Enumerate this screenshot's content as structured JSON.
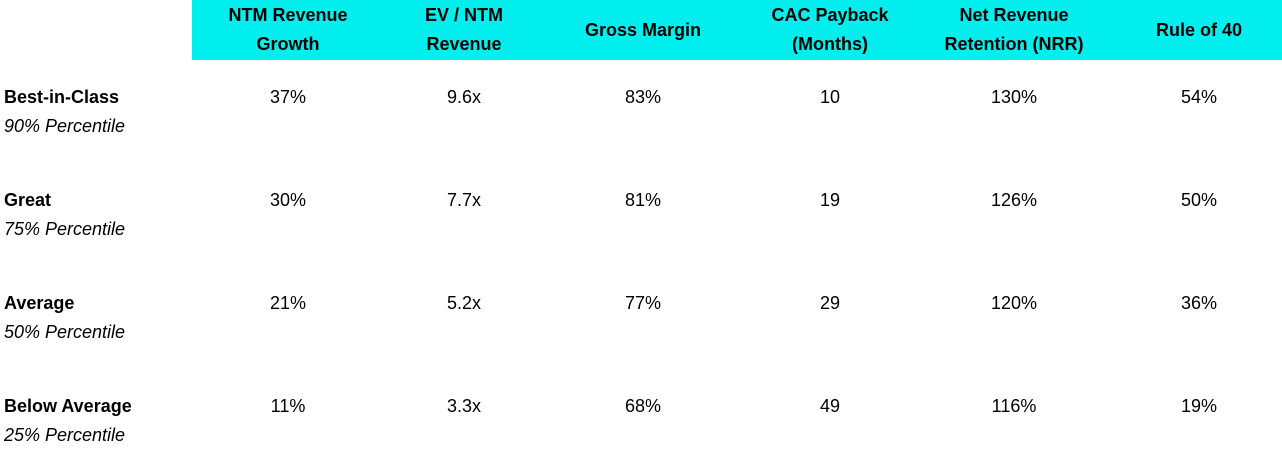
{
  "chart_data": {
    "type": "table",
    "columns": [
      "NTM Revenue\nGrowth",
      "EV / NTM\nRevenue",
      "Gross Margin",
      "CAC Payback\n(Months)",
      "Net Revenue\nRetention (NRR)",
      "Rule of 40"
    ],
    "rows": [
      {
        "label": "Best-in-Class",
        "sublabel": "90% Percentile",
        "values": [
          "37%",
          "9.6x",
          "83%",
          "10",
          "130%",
          "54%"
        ]
      },
      {
        "label": "Great",
        "sublabel": "75% Percentile",
        "values": [
          "30%",
          "7.7x",
          "81%",
          "19",
          "126%",
          "50%"
        ]
      },
      {
        "label": "Average",
        "sublabel": "50% Percentile",
        "values": [
          "21%",
          "5.2x",
          "77%",
          "29",
          "120%",
          "36%"
        ]
      },
      {
        "label": "Below Average",
        "sublabel": "25% Percentile",
        "values": [
          "11%",
          "3.3x",
          "68%",
          "49",
          "116%",
          "19%"
        ]
      }
    ],
    "header_color": "#00eeee"
  }
}
